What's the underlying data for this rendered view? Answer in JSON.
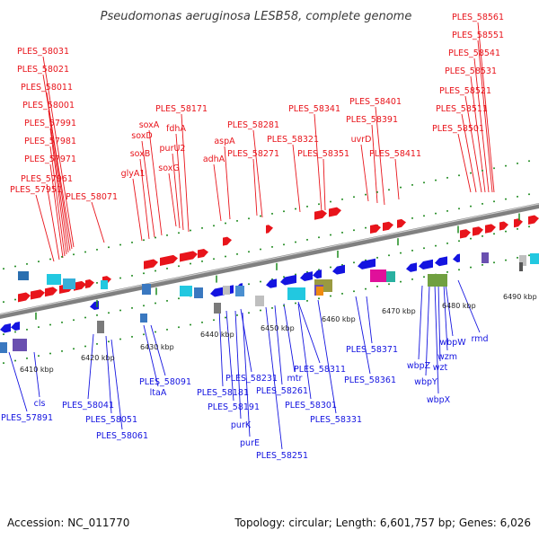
{
  "title": "Pseudomonas aeruginosa LESB58, complete genome",
  "footer": {
    "accession": "Accession: NC_011770",
    "topology": "Topology: circular; Length: 6,601,757 bp; Genes: 6,026"
  },
  "colors": {
    "forward": "#e8141b",
    "reverse": "#1414e0",
    "backbone": "#808080",
    "tick": "#1e8a1e"
  },
  "ticks": [
    "6410 kbp",
    "6420 kbp",
    "6430 kbp",
    "6440 kbp",
    "6450 kbp",
    "6460 kbp",
    "6470 kbp",
    "6480 kbp",
    "6490 kbp"
  ],
  "forward_labels": [
    "PLES_58031",
    "PLES_58021",
    "PLES_58011",
    "PLES_58001",
    "PLES_57991",
    "PLES_57981",
    "PLES_57971",
    "PLES_57961",
    "PLES_57951",
    "PLES_58071",
    "glyA1",
    "soxB",
    "soxD",
    "soxA",
    "PLES_58171",
    "fdhA",
    "purU2",
    "soxG",
    "adhA",
    "aspA",
    "PLES_58281",
    "PLES_58271",
    "PLES_58341",
    "PLES_58321",
    "PLES_58351",
    "PLES_58401",
    "PLES_58391",
    "uvrD",
    "PLES_58411",
    "PLES_58561",
    "PLES_58551",
    "PLES_58541",
    "PLES_58531",
    "PLES_58521",
    "PLES_58511",
    "PLES_58501"
  ],
  "reverse_labels": [
    "PLES_57891",
    "cls",
    "PLES_58041",
    "PLES_58051",
    "PLES_58061",
    "ltaA",
    "PLES_58091",
    "PLES_58181",
    "PLES_58191",
    "PLES_58231",
    "purK",
    "purE",
    "PLES_58251",
    "PLES_58261",
    "mtr",
    "PLES_58311",
    "PLES_58301",
    "PLES_58331",
    "PLES_58361",
    "PLES_58371",
    "wbpZ",
    "wbpY",
    "wbpX",
    "wzt",
    "wzm",
    "wbpW",
    "rmd"
  ]
}
